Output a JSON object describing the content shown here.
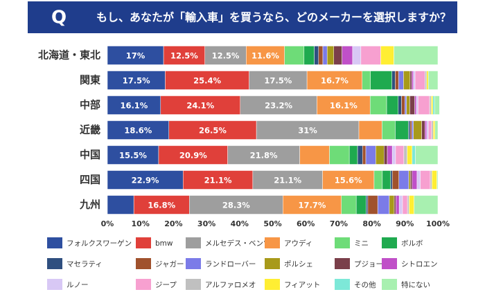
{
  "chart_data": {
    "type": "stacked_bar_horizontal",
    "badge": "Q",
    "title": "もし、あなたが「輸入車」を買うなら、どのメーカーを選択しますか？",
    "categories": [
      "北海道・東北",
      "関東",
      "中部",
      "近畿",
      "中国",
      "四国",
      "九州"
    ],
    "xlim": [
      0,
      100
    ],
    "xticks": [
      {
        "value": 0,
        "label": "0%"
      },
      {
        "value": 10,
        "label": "10%"
      },
      {
        "value": 20,
        "label": "20%"
      },
      {
        "value": 30,
        "label": "30%"
      },
      {
        "value": 40,
        "label": "40%"
      },
      {
        "value": 50,
        "label": "50%"
      },
      {
        "value": 60,
        "label": "60%"
      },
      {
        "value": 70,
        "label": "70%"
      },
      {
        "value": 80,
        "label": "80%"
      },
      {
        "value": 90,
        "label": "90%"
      },
      {
        "value": 100,
        "label": "100%"
      }
    ],
    "series": [
      {
        "name": "フォルクスワーゲン",
        "color": "#2e4fa0",
        "values": [
          17,
          17.5,
          16.1,
          18.6,
          15.5,
          22.9,
          8
        ],
        "value_labels": [
          "17%",
          "17.5%",
          "16.1%",
          "18.6%",
          "15.5%",
          "22.9%",
          null
        ]
      },
      {
        "name": "bmw",
        "color": "#e0403a",
        "values": [
          12.5,
          25.4,
          24.1,
          26.5,
          20.9,
          21.1,
          16.8
        ],
        "value_labels": [
          "12.5%",
          "25.4%",
          "24.1%",
          "26.5%",
          "20.9%",
          "21.1%",
          "16.8%"
        ]
      },
      {
        "name": "メルセデス・ベンツ",
        "color": "#9e9e9e",
        "values": [
          12.5,
          17.5,
          23.2,
          31,
          21.8,
          21.1,
          28.3
        ],
        "value_labels": [
          "12.5%",
          "17.5%",
          "23.2%",
          "31%",
          "21.8%",
          "21.1%",
          "28.3%"
        ]
      },
      {
        "name": "アウディ",
        "color": "#f79646",
        "values": [
          11.6,
          16.7,
          16.1,
          7,
          9,
          15.6,
          17.7
        ],
        "value_labels": [
          "11.6%",
          "16.7%",
          "16.1%",
          null,
          null,
          "15.6%",
          "17.7%"
        ]
      },
      {
        "name": "ミニ",
        "color": "#6edc78",
        "values": [
          5.9,
          2.5,
          5,
          4,
          6,
          2.5,
          4.5
        ]
      },
      {
        "name": "ボルボ",
        "color": "#1faa4f",
        "values": [
          3.1,
          6.5,
          3.5,
          4,
          2.5,
          2.5,
          3
        ]
      },
      {
        "name": "マセラティ",
        "color": "#2f4f7f",
        "values": [
          1.3,
          1,
          1,
          0.5,
          1.5,
          0.5,
          0.5
        ]
      },
      {
        "name": "ジャガー",
        "color": "#a0522d",
        "values": [
          1.3,
          1,
          1,
          0.5,
          1,
          2,
          3
        ]
      },
      {
        "name": "ランドローバー",
        "color": "#7b7be8",
        "values": [
          1.3,
          1.5,
          0.5,
          0.5,
          3,
          3,
          3.5
        ]
      },
      {
        "name": "ポルシェ",
        "color": "#a89a1a",
        "values": [
          2,
          2,
          1,
          2.5,
          2.5,
          0.5,
          1.5
        ]
      },
      {
        "name": "プジョー",
        "color": "#7a3f4a",
        "values": [
          2.5,
          0.5,
          1.5,
          1,
          1,
          0.5,
          0.5
        ]
      },
      {
        "name": "シトロエン",
        "color": "#c050c8",
        "values": [
          3.2,
          0.5,
          0.5,
          0.5,
          1.5,
          1.5,
          1
        ]
      },
      {
        "name": "ルノー",
        "color": "#d8c8f5",
        "values": [
          2.5,
          0.5,
          0.5,
          0.5,
          1,
          1,
          1
        ]
      },
      {
        "name": "ジープ",
        "color": "#f7a0d0",
        "values": [
          6,
          3,
          3.5,
          1,
          2.5,
          3,
          1.5
        ]
      },
      {
        "name": "アルファロメオ",
        "color": "#c0c0c0",
        "values": [
          0,
          0.5,
          0.5,
          0.5,
          1,
          0.5,
          0.5
        ]
      },
      {
        "name": "フィアット",
        "color": "#ffee33",
        "values": [
          4,
          0.5,
          0.5,
          0.5,
          1.5,
          1.5,
          1.5
        ]
      },
      {
        "name": "その他",
        "color": "#7de8d8",
        "values": [
          0,
          0,
          0.5,
          0,
          1,
          0,
          0
        ]
      },
      {
        "name": "特にない",
        "color": "#a8f0b0",
        "values": [
          13.3,
          2.9,
          1.5,
          0.9,
          6.8,
          0.3,
          7.2
        ]
      }
    ]
  }
}
